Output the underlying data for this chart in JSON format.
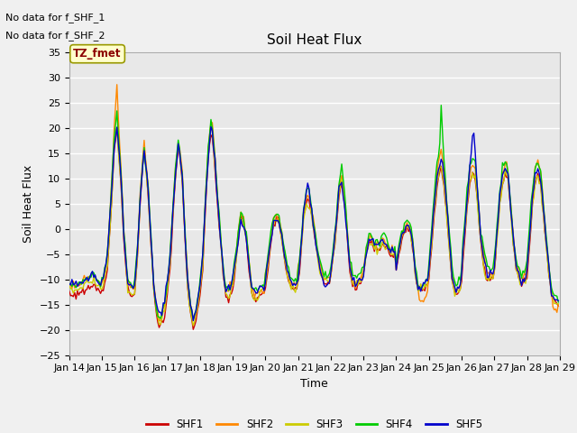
{
  "title": "Soil Heat Flux",
  "xlabel": "Time",
  "ylabel": "Soil Heat Flux",
  "xlim": [
    0,
    360
  ],
  "ylim": [
    -25,
    35
  ],
  "yticks": [
    -25,
    -20,
    -15,
    -10,
    -5,
    0,
    5,
    10,
    15,
    20,
    25,
    30,
    35
  ],
  "xtick_labels": [
    "Jan 14",
    "Jan 15",
    "Jan 16",
    "Jan 17",
    "Jan 18",
    "Jan 19",
    "Jan 20",
    "Jan 21",
    "Jan 22",
    "Jan 23",
    "Jan 24",
    "Jan 25",
    "Jan 26",
    "Jan 27",
    "Jan 28",
    "Jan 29"
  ],
  "xtick_positions": [
    0,
    24,
    48,
    72,
    96,
    120,
    144,
    168,
    192,
    216,
    240,
    264,
    288,
    312,
    336,
    360
  ],
  "series_colors": [
    "#cc0000",
    "#ff8800",
    "#cccc00",
    "#00cc00",
    "#0000cc"
  ],
  "series_labels": [
    "SHF1",
    "SHF2",
    "SHF3",
    "SHF4",
    "SHF5"
  ],
  "no_data_text": [
    "No data for f_SHF_1",
    "No data for f_SHF_2"
  ],
  "tz_label": "TZ_fmet",
  "background_color": "#f0f0f0",
  "plot_bg_color": "#e8e8e8",
  "title_fontsize": 11,
  "axis_label_fontsize": 9,
  "tick_fontsize": 8,
  "line_width": 1.0
}
